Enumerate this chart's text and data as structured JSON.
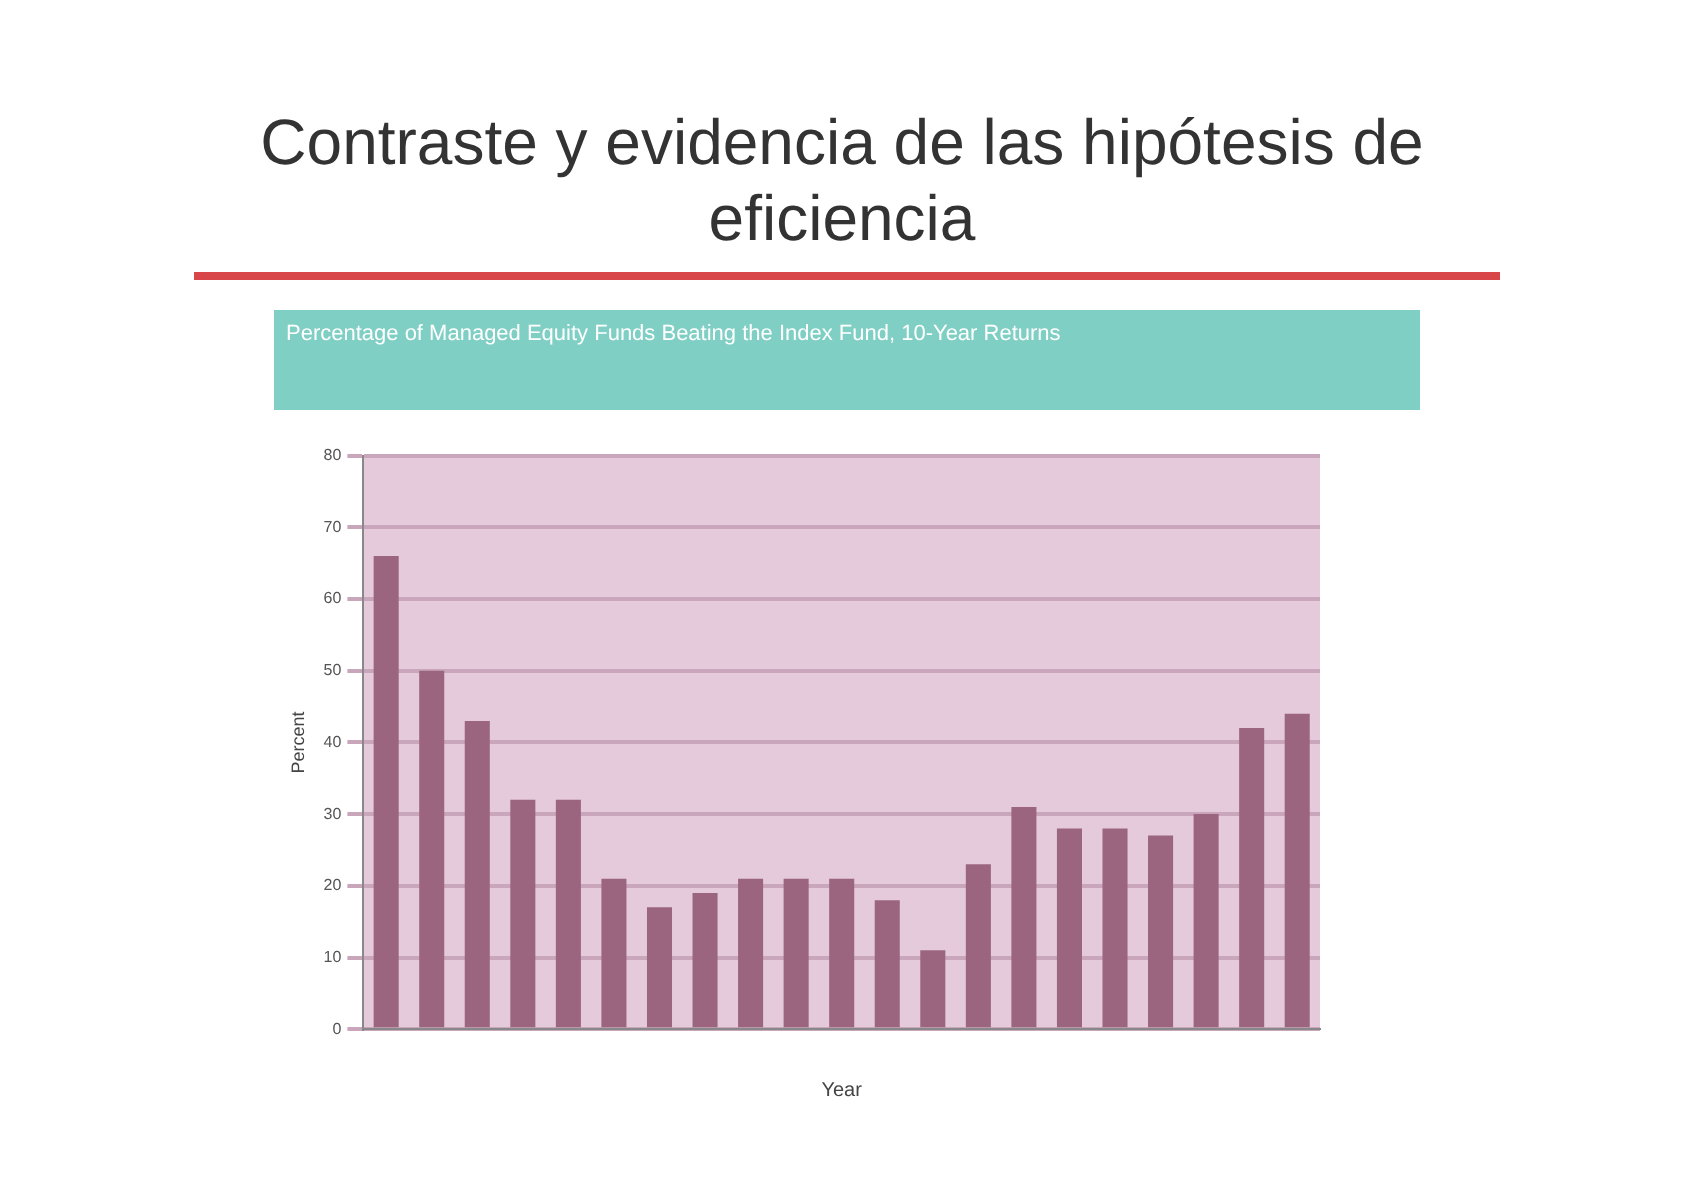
{
  "chart_data": {
    "type": "bar",
    "title": "Contraste y evidencia de las hipótesis de eficiencia",
    "subtitle": "Percentage of Managed Equity Funds Beating the Index Fund, 10-Year Returns",
    "xlabel": "Year",
    "ylabel": "Percent",
    "categories": [
      null,
      null,
      null,
      null,
      null,
      null,
      null,
      null,
      null,
      null,
      null,
      null,
      null,
      null,
      null,
      null,
      null,
      null,
      null,
      null,
      null
    ],
    "values": [
      66,
      50,
      43,
      32,
      32,
      21,
      17,
      19,
      21,
      21,
      21,
      18,
      11,
      23,
      31,
      28,
      28,
      27,
      30,
      42,
      44
    ],
    "color": "#9b6580",
    "ylim": [
      0,
      80
    ],
    "yticks": [
      0,
      10,
      20,
      30,
      40,
      50,
      60,
      70,
      80
    ],
    "grid": "y"
  }
}
